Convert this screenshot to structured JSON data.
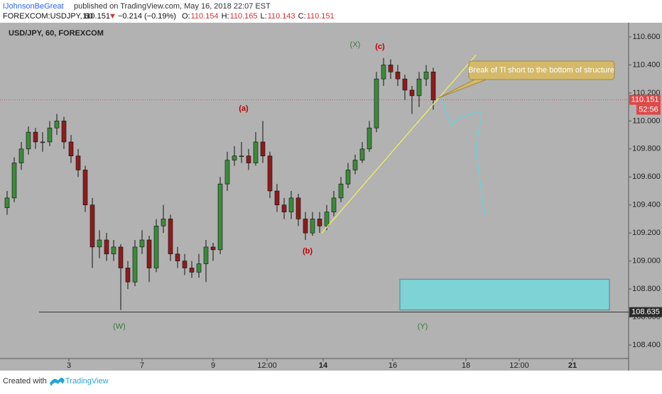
{
  "header": {
    "author": "IJohnsonBeGreat",
    "published": "published on TradingView.com, May 16, 2018 22:07 EST",
    "symbol": "FOREXCOM:USDJPY, 60",
    "last": "110.151",
    "change_arrow": "▼",
    "change": "−0.214 (−0.19%)",
    "ohlc": [
      {
        "label": "O:",
        "value": "110.154"
      },
      {
        "label": "H:",
        "value": "110.165"
      },
      {
        "label": "L:",
        "value": "110.143"
      },
      {
        "label": "C:",
        "value": "110.151"
      }
    ]
  },
  "chart_data": {
    "type": "candlestick",
    "title": "USD/JPY, 60, FOREXCOM",
    "candles": [
      [
        109.38,
        109.5,
        109.33,
        109.45
      ],
      [
        109.45,
        109.74,
        109.42,
        109.7
      ],
      [
        109.7,
        109.85,
        109.65,
        109.8
      ],
      [
        109.8,
        109.96,
        109.76,
        109.92
      ],
      [
        109.92,
        109.95,
        109.8,
        109.85
      ],
      [
        109.85,
        109.92,
        109.78,
        109.85
      ],
      [
        109.85,
        110.0,
        109.82,
        109.95
      ],
      [
        109.95,
        110.05,
        109.9,
        110.0
      ],
      [
        110.0,
        110.03,
        109.8,
        109.85
      ],
      [
        109.85,
        109.9,
        109.7,
        109.75
      ],
      [
        109.75,
        109.8,
        109.6,
        109.65
      ],
      [
        109.65,
        109.68,
        109.35,
        109.4
      ],
      [
        109.4,
        109.45,
        108.95,
        109.1
      ],
      [
        109.1,
        109.22,
        109.02,
        109.15
      ],
      [
        109.15,
        109.2,
        109.0,
        109.05
      ],
      [
        109.05,
        109.15,
        109.0,
        109.1
      ],
      [
        109.1,
        109.12,
        108.65,
        108.95
      ],
      [
        108.95,
        109.0,
        108.8,
        108.85
      ],
      [
        108.85,
        109.15,
        108.82,
        109.1
      ],
      [
        109.1,
        109.22,
        109.05,
        109.15
      ],
      [
        109.15,
        109.18,
        108.85,
        108.95
      ],
      [
        108.95,
        109.3,
        108.92,
        109.25
      ],
      [
        109.25,
        109.4,
        109.2,
        109.3
      ],
      [
        109.3,
        109.33,
        109.0,
        109.05
      ],
      [
        109.05,
        109.1,
        108.95,
        109.0
      ],
      [
        109.0,
        109.05,
        108.9,
        108.95
      ],
      [
        108.95,
        109.0,
        108.88,
        108.92
      ],
      [
        108.92,
        109.05,
        108.88,
        108.98
      ],
      [
        108.98,
        109.15,
        108.85,
        109.1
      ],
      [
        109.1,
        109.13,
        109.0,
        109.08
      ],
      [
        109.08,
        109.6,
        109.05,
        109.55
      ],
      [
        109.55,
        109.78,
        109.5,
        109.72
      ],
      [
        109.72,
        109.82,
        109.68,
        109.75
      ],
      [
        109.75,
        109.85,
        109.7,
        109.75
      ],
      [
        109.75,
        109.8,
        109.65,
        109.7
      ],
      [
        109.7,
        109.92,
        109.68,
        109.85
      ],
      [
        109.85,
        110.0,
        109.7,
        109.75
      ],
      [
        109.75,
        109.78,
        109.45,
        109.5
      ],
      [
        109.5,
        109.55,
        109.35,
        109.4
      ],
      [
        109.4,
        109.45,
        109.3,
        109.35
      ],
      [
        109.35,
        109.5,
        109.3,
        109.45
      ],
      [
        109.45,
        109.48,
        109.25,
        109.3
      ],
      [
        109.3,
        109.35,
        109.15,
        109.2
      ],
      [
        109.2,
        109.35,
        109.18,
        109.3
      ],
      [
        109.3,
        109.35,
        109.2,
        109.25
      ],
      [
        109.25,
        109.4,
        109.22,
        109.35
      ],
      [
        109.35,
        109.5,
        109.32,
        109.45
      ],
      [
        109.45,
        109.6,
        109.42,
        109.55
      ],
      [
        109.55,
        109.7,
        109.52,
        109.65
      ],
      [
        109.65,
        109.76,
        109.62,
        109.72
      ],
      [
        109.72,
        109.85,
        109.7,
        109.8
      ],
      [
        109.8,
        110.0,
        109.78,
        109.95
      ],
      [
        109.95,
        110.35,
        109.92,
        110.3
      ],
      [
        110.3,
        110.45,
        110.25,
        110.4
      ],
      [
        110.4,
        110.44,
        110.3,
        110.35
      ],
      [
        110.35,
        110.4,
        110.25,
        110.3
      ],
      [
        110.3,
        110.33,
        110.15,
        110.22
      ],
      [
        110.22,
        110.25,
        110.05,
        110.18
      ],
      [
        110.18,
        110.35,
        110.1,
        110.3
      ],
      [
        110.3,
        110.4,
        110.25,
        110.35
      ],
      [
        110.35,
        110.38,
        110.08,
        110.15
      ]
    ],
    "up_color": "#3b8a3b",
    "down_color": "#8e1c1c",
    "xlim": [
      0,
      88
    ],
    "xticks": [
      {
        "value": 9.2,
        "label": "3"
      },
      {
        "value": 19.5,
        "label": "7"
      },
      {
        "value": 29.5,
        "label": "9"
      },
      {
        "value": 37.1,
        "label": "12:00"
      },
      {
        "value": 45,
        "label": "14"
      },
      {
        "value": 54.8,
        "label": "16"
      },
      {
        "value": 65.1,
        "label": "18"
      },
      {
        "value": 72.6,
        "label": "12:00"
      },
      {
        "value": 80.1,
        "label": "21"
      }
    ],
    "ylim": [
      108.4,
      110.6
    ],
    "yticks": [
      {
        "value": 110.6,
        "label": "110.600"
      },
      {
        "value": 110.4,
        "label": "110.400"
      },
      {
        "value": 110.2,
        "label": "110.200"
      },
      {
        "value": 110,
        "label": "110.000"
      },
      {
        "value": 109.8,
        "label": "109.800"
      },
      {
        "value": 109.6,
        "label": "109.600"
      },
      {
        "value": 109.4,
        "label": "109.400"
      },
      {
        "value": 109.2,
        "label": "109.200"
      },
      {
        "value": 109,
        "label": "109.000"
      },
      {
        "value": 108.8,
        "label": "108.800"
      },
      {
        "value": 108.6,
        "label": "108.600"
      },
      {
        "value": 108.4,
        "label": "108.400"
      }
    ],
    "last_price": 110.151,
    "countdown": "52:56",
    "support": 108.635,
    "trendline": {
      "x": [
        44.8,
        66.5
      ],
      "values": [
        109.2,
        110.47
      ],
      "color": "#f2f25a"
    },
    "projection": {
      "x": [
        61.7,
        63,
        64.5,
        66,
        67,
        67.3,
        66.5,
        67.5,
        67.8
      ],
      "values": [
        110.15,
        109.97,
        110.03,
        110.05,
        110.07,
        110.05,
        109.8,
        109.4,
        109.33
      ],
      "color": "#6fd0d8"
    },
    "target_zone": {
      "x": [
        55.8,
        85.3
      ],
      "values": [
        108.87,
        108.65
      ],
      "color": "#7dd3d6"
    },
    "annotations": [
      "(X)",
      "(c)",
      "(a)",
      "(b)",
      "(W)",
      "(Y)",
      "Break of Tl short to the bottom of structure"
    ]
  },
  "footer": {
    "created": "Created with",
    "brand": "TradingView"
  }
}
